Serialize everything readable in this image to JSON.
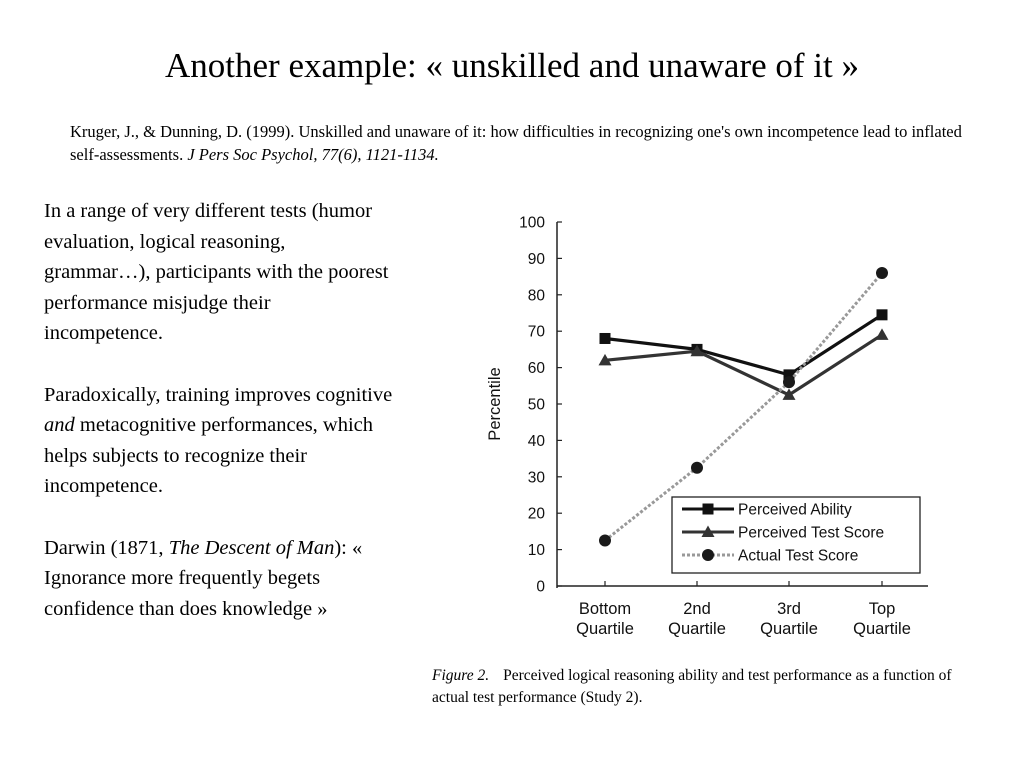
{
  "slide": {
    "title": "Another example: « unskilled and unaware of it »",
    "citation_plain": "Kruger, J., & Dunning, D. (1999). Unskilled and unaware of it: how difficulties in recognizing one's own incompetence lead to inflated self-assessments.",
    "citation_journal": "J Pers Soc Psychol, 77(6), 1121-1134.",
    "para1": "In a range of very different tests (humor evaluation, logical reasoning, grammar…), participants with the poorest performance misjudge their incompetence.",
    "para2_a": "Paradoxically, training improves cognitive ",
    "para2_em": "and",
    "para2_b": " metacognitive performances, which helps subjects to recognize their incompetence.",
    "para3_a": "Darwin (1871, ",
    "para3_em": "The Descent of Man",
    "para3_b": "): « Ignorance more frequently begets confidence than does knowledge »"
  },
  "caption": {
    "label": "Figure 2.",
    "text": "Perceived logical reasoning ability and test performance as a function of actual test performance (Study 2)."
  },
  "chart_data": {
    "type": "line",
    "title": "",
    "xlabel": "",
    "ylabel": "Percentile",
    "categories": [
      [
        "Bottom",
        "Quartile"
      ],
      [
        "2nd",
        "Quartile"
      ],
      [
        "3rd",
        "Quartile"
      ],
      [
        "Top",
        "Quartile"
      ]
    ],
    "ylim": [
      0,
      100
    ],
    "yticks": [
      0,
      10,
      20,
      30,
      40,
      50,
      60,
      70,
      80,
      90,
      100
    ],
    "grid": false,
    "legend_position": "bottom-right",
    "series": [
      {
        "name": "Perceived Ability",
        "values": [
          68,
          65,
          58,
          74.5
        ],
        "marker": "square",
        "color": "#111111",
        "style": "solid"
      },
      {
        "name": "Perceived Test Score",
        "values": [
          62,
          64.5,
          52.5,
          69
        ],
        "marker": "triangle",
        "color": "#333333",
        "style": "solid"
      },
      {
        "name": "Actual Test Score",
        "values": [
          12.5,
          32.5,
          56,
          86
        ],
        "marker": "circle",
        "color": "#999999",
        "style": "dashed"
      }
    ]
  }
}
